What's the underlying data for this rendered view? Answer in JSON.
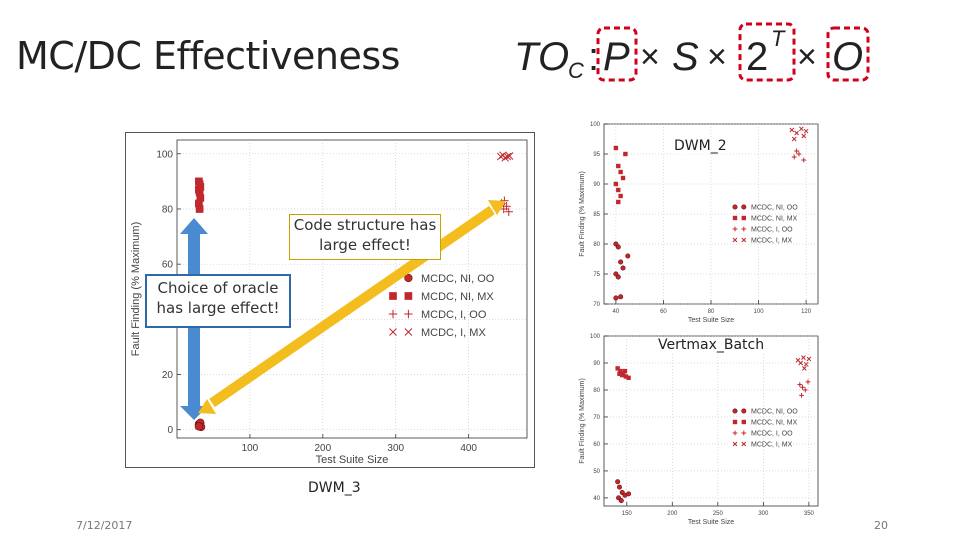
{
  "slide": {
    "title": "MC/DC Effectiveness",
    "formula": {
      "T": "T",
      "O": "O",
      "C": "C",
      "colon": ":",
      "P": "P",
      "times": "×",
      "S": "S",
      "two": "2",
      "boxT": "T",
      "boxO": "O"
    },
    "date": "7/12/2017",
    "page": "20",
    "annotations": {
      "code_structure": [
        "Code structure has",
        "large effect!"
      ],
      "oracle": [
        "Choice of oracle",
        "has large effect!"
      ]
    },
    "captions": {
      "main": "DWM_3",
      "tr": "DWM_2",
      "br": "Vertmax_Batch"
    }
  },
  "colors": {
    "red": "#c0282d",
    "darkred": "#a52a2a",
    "arrow_blue": "#4a8ad0",
    "arrow_yellow": "#f2bd1d",
    "box_border_blue": "#2e6aa8",
    "box_border_yellow": "#c8a000",
    "dash_red": "#d0021b"
  },
  "chart_data": [
    {
      "id": "main",
      "type": "scatter",
      "title": "DWM_3",
      "xlabel": "Test Suite Size",
      "ylabel": "Fault Finding (% Maximum)",
      "xlim": [
        0,
        480
      ],
      "ylim": [
        -3,
        105
      ],
      "xticks": [
        100,
        200,
        300,
        400
      ],
      "yticks": [
        0,
        20,
        40,
        60,
        80,
        100
      ],
      "legend": [
        "MCDC, NI, OO",
        "MCDC, NI, MX",
        "MCDC, I, OO",
        "MCDC, I, MX"
      ],
      "series": [
        {
          "name": "MCDC, NI, OO",
          "marker": "circle",
          "x": [
            30,
            31,
            32,
            33,
            30
          ],
          "y": [
            2,
            1.5,
            2.5,
            1,
            1.2
          ]
        },
        {
          "name": "MCDC, NI, MX",
          "marker": "square",
          "x": [
            30,
            31,
            32,
            30,
            31,
            32,
            30,
            31
          ],
          "y": [
            90,
            89,
            88,
            87,
            86,
            84,
            82,
            80
          ]
        },
        {
          "name": "MCDC, I, OO",
          "marker": "plus",
          "x": [
            445,
            448,
            452,
            455,
            449
          ],
          "y": [
            82,
            80,
            81,
            79,
            83
          ]
        },
        {
          "name": "MCDC, I, MX",
          "marker": "x",
          "x": [
            444,
            447,
            450,
            453,
            456
          ],
          "y": [
            99,
            99.5,
            98.5,
            99,
            99.2
          ]
        }
      ]
    },
    {
      "id": "tr",
      "type": "scatter",
      "title": "DWM_2",
      "xlabel": "Test Suite Size",
      "ylabel": "Fault Finding (% Maximum)",
      "xlim": [
        35,
        125
      ],
      "ylim": [
        70,
        100
      ],
      "xticks": [
        40,
        60,
        80,
        100,
        120
      ],
      "yticks": [
        70,
        75,
        80,
        85,
        90,
        95,
        100
      ],
      "legend": [
        "MCDC, NI, OO",
        "MCDC, NI, MX",
        "MCDC, I, OO",
        "MCDC, I, MX"
      ],
      "series": [
        {
          "name": "MCDC, NI, OO",
          "marker": "circle",
          "x": [
            40,
            41,
            42,
            43,
            40,
            41,
            45,
            40,
            42
          ],
          "y": [
            80,
            79.5,
            77,
            76,
            75,
            74.5,
            78,
            71,
            71.2
          ]
        },
        {
          "name": "MCDC, NI, MX",
          "marker": "square",
          "x": [
            40,
            41,
            42,
            43,
            40,
            41,
            42,
            44,
            41
          ],
          "y": [
            96,
            93,
            92,
            91,
            90,
            89,
            88,
            95,
            87
          ]
        },
        {
          "name": "MCDC, I, OO",
          "marker": "plus",
          "x": [
            115,
            117,
            119,
            116
          ],
          "y": [
            94.5,
            95,
            94,
            95.5
          ]
        },
        {
          "name": "MCDC, I, MX",
          "marker": "x",
          "x": [
            114,
            116,
            118,
            120,
            115,
            119
          ],
          "y": [
            99,
            98.5,
            99.2,
            98.8,
            97.5,
            98
          ]
        }
      ]
    },
    {
      "id": "br",
      "type": "scatter",
      "title": "Vertmax_Batch",
      "xlabel": "Test Suite Size",
      "ylabel": "Fault Finding (% Maximum)",
      "xlim": [
        125,
        360
      ],
      "ylim": [
        37,
        100
      ],
      "xticks": [
        150,
        200,
        250,
        300,
        350
      ],
      "yticks": [
        40,
        50,
        60,
        70,
        80,
        90,
        100
      ],
      "legend": [
        "MCDC, NI, OO",
        "MCDC, NI, MX",
        "MCDC, I, OO",
        "MCDC, I, MX"
      ],
      "series": [
        {
          "name": "MCDC, NI, OO",
          "marker": "circle",
          "x": [
            140,
            142,
            145,
            141,
            148,
            144,
            152
          ],
          "y": [
            46,
            44,
            42,
            40,
            41,
            39,
            41.5
          ]
        },
        {
          "name": "MCDC, NI, MX",
          "marker": "square",
          "x": [
            140,
            143,
            146,
            149,
            152,
            142,
            145,
            148
          ],
          "y": [
            88,
            87,
            86,
            85,
            84.5,
            86,
            85.5,
            87
          ]
        },
        {
          "name": "MCDC, I, OO",
          "marker": "plus",
          "x": [
            340,
            343,
            346,
            349,
            342
          ],
          "y": [
            82,
            81,
            80,
            83,
            78
          ]
        },
        {
          "name": "MCDC, I, MX",
          "marker": "x",
          "x": [
            338,
            341,
            344,
            347,
            350,
            345
          ],
          "y": [
            91,
            90,
            92,
            89.5,
            91.5,
            88
          ]
        }
      ]
    }
  ]
}
